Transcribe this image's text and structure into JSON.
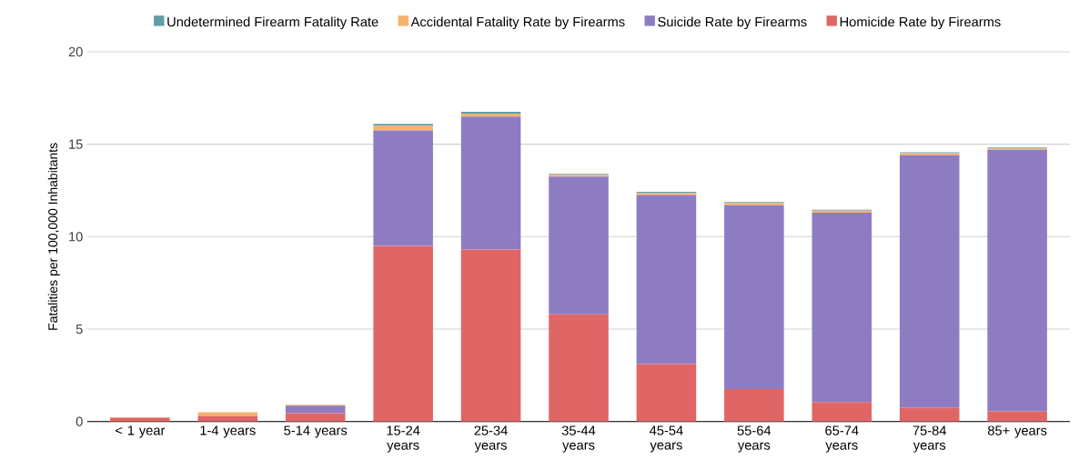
{
  "chart_data": {
    "type": "bar",
    "stacked": true,
    "ylabel": "Fatalities per 100,000 Inhabitants",
    "categories": [
      "< 1 year",
      "1-4 years",
      "5-14 years",
      "15-24 years",
      "25-34 years",
      "35-44 years",
      "45-54 years",
      "55-64 years",
      "65-74 years",
      "75-84 years",
      "85+ years"
    ],
    "series": [
      {
        "name": "Homicide Rate by Firearms",
        "color": "#e06666",
        "values": [
          0.2,
          0.3,
          0.45,
          9.5,
          9.3,
          5.8,
          3.1,
          1.75,
          1.05,
          0.75,
          0.55
        ]
      },
      {
        "name": "Suicide Rate by Firearms",
        "color": "#8e7cc3",
        "values": [
          0,
          0,
          0.4,
          6.25,
          7.2,
          7.45,
          9.15,
          9.95,
          10.25,
          13.65,
          14.15
        ]
      },
      {
        "name": "Accidental Fatality Rate by Firearms",
        "color": "#f6b26b",
        "values": [
          0.03,
          0.2,
          0.05,
          0.25,
          0.15,
          0.1,
          0.12,
          0.12,
          0.1,
          0.12,
          0.07
        ]
      },
      {
        "name": "Undetermined Firearm Fatality Rate",
        "color": "#5f9ea8",
        "values": [
          null,
          null,
          null,
          0.1,
          0.1,
          0.05,
          0.05,
          0.05,
          0.05,
          0.05,
          0.05
        ]
      }
    ],
    "ylim": [
      0,
      20
    ],
    "yticks": [
      0,
      5,
      10,
      15,
      20
    ],
    "grid": "y",
    "legend": "top"
  }
}
